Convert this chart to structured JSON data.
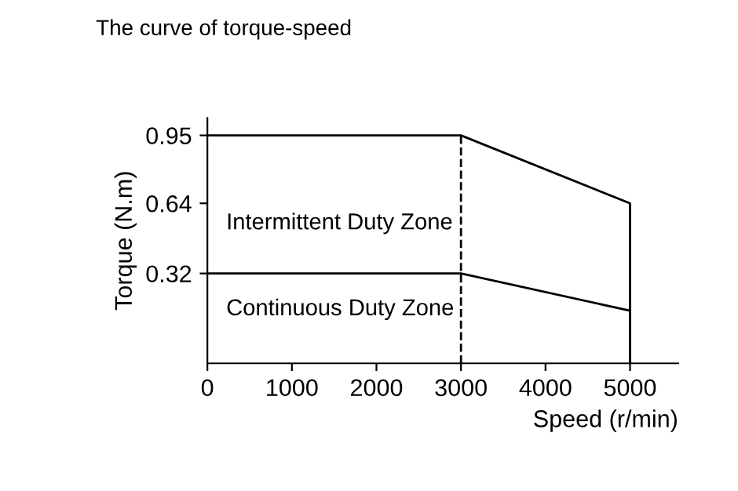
{
  "chart_data": {
    "type": "line",
    "title": "The curve of torque-speed",
    "xlabel": "Speed (r/min)",
    "ylabel": "Torque (N.m)",
    "xlim": [
      0,
      5570
    ],
    "xticks": [
      0,
      1000,
      2000,
      3000,
      4000,
      5000
    ],
    "ylim": [
      -0.09,
      1.03
    ],
    "yticks": [
      0.32,
      0.64,
      0.95
    ],
    "series": [
      {
        "color": "#000000",
        "x": [
          0,
          3000,
          5000,
          5000
        ],
        "values": [
          0.95,
          0.95,
          0.64,
          -0.09
        ]
      },
      {
        "color": "#000000",
        "x": [
          0,
          3000,
          5000,
          5000
        ],
        "values": [
          0.32,
          0.32,
          0.15,
          -0.09
        ]
      }
    ],
    "ref_lines": [
      {
        "axis": "x",
        "value": 3000,
        "color": "#000000",
        "line_style": "dashed"
      }
    ],
    "annotations": [
      "Intermittent Duty Zone",
      "Continuous Duty Zone"
    ],
    "grid": false,
    "legend": false,
    "marker": "none",
    "line_style": "solid"
  }
}
